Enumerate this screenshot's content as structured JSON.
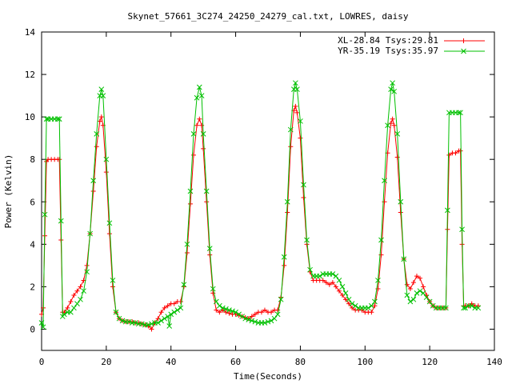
{
  "chart_data": {
    "type": "line",
    "title": "Skynet_57661_3C274_24250_24279_cal.txt, LOWRES, daisy",
    "xlabel": "Time(Seconds)",
    "ylabel": "Power (Kelvin)",
    "xlim": [
      0,
      140
    ],
    "ylim": [
      -1,
      14
    ],
    "xticks": [
      0,
      20,
      40,
      60,
      80,
      100,
      120,
      140
    ],
    "yticks": [
      0,
      2,
      4,
      6,
      8,
      10,
      12,
      14
    ],
    "grid": false,
    "legend_position": "top-right",
    "series": [
      {
        "name": "XL-28.84 Tsys:29.81",
        "color": "#ff0000",
        "marker": "plus",
        "points": [
          [
            0,
            0.7
          ],
          [
            0.5,
            1.0
          ],
          [
            1,
            4.4
          ],
          [
            1.5,
            7.9
          ],
          [
            2,
            8.0
          ],
          [
            3,
            8.0
          ],
          [
            4,
            8.0
          ],
          [
            5,
            8.0
          ],
          [
            5.5,
            8.0
          ],
          [
            6,
            4.2
          ],
          [
            6.5,
            0.8
          ],
          [
            7,
            0.8
          ],
          [
            8,
            1.0
          ],
          [
            9,
            1.3
          ],
          [
            10,
            1.6
          ],
          [
            11,
            1.8
          ],
          [
            12,
            2.0
          ],
          [
            13,
            2.3
          ],
          [
            14,
            3.0
          ],
          [
            15,
            4.5
          ],
          [
            16,
            6.5
          ],
          [
            17,
            8.6
          ],
          [
            18,
            9.8
          ],
          [
            18.5,
            10.0
          ],
          [
            19,
            9.6
          ],
          [
            20,
            7.4
          ],
          [
            21,
            4.5
          ],
          [
            22,
            2.0
          ],
          [
            23,
            0.8
          ],
          [
            24,
            0.5
          ],
          [
            25,
            0.4
          ],
          [
            26,
            0.35
          ],
          [
            27,
            0.35
          ],
          [
            28,
            0.35
          ],
          [
            29,
            0.3
          ],
          [
            30,
            0.3
          ],
          [
            31,
            0.25
          ],
          [
            32,
            0.2
          ],
          [
            33,
            0.15
          ],
          [
            34,
            0.0
          ],
          [
            35,
            0.3
          ],
          [
            36,
            0.5
          ],
          [
            37,
            0.8
          ],
          [
            38,
            1.0
          ],
          [
            39,
            1.1
          ],
          [
            40,
            1.2
          ],
          [
            41,
            1.2
          ],
          [
            42,
            1.3
          ],
          [
            43,
            1.3
          ],
          [
            44,
            2.0
          ],
          [
            45,
            3.6
          ],
          [
            46,
            5.9
          ],
          [
            47,
            8.2
          ],
          [
            48,
            9.6
          ],
          [
            48.8,
            9.9
          ],
          [
            49.5,
            9.6
          ],
          [
            50,
            8.5
          ],
          [
            51,
            6.0
          ],
          [
            52,
            3.5
          ],
          [
            53,
            1.7
          ],
          [
            54,
            0.9
          ],
          [
            55,
            0.8
          ],
          [
            56,
            0.9
          ],
          [
            57,
            0.8
          ],
          [
            58,
            0.75
          ],
          [
            59,
            0.7
          ],
          [
            60,
            0.7
          ],
          [
            61,
            0.65
          ],
          [
            62,
            0.6
          ],
          [
            63,
            0.55
          ],
          [
            64,
            0.5
          ],
          [
            65,
            0.6
          ],
          [
            66,
            0.7
          ],
          [
            67,
            0.8
          ],
          [
            68,
            0.8
          ],
          [
            69,
            0.9
          ],
          [
            70,
            0.8
          ],
          [
            71,
            0.8
          ],
          [
            72,
            0.9
          ],
          [
            73,
            0.9
          ],
          [
            74,
            1.5
          ],
          [
            75,
            3.0
          ],
          [
            76,
            5.5
          ],
          [
            77,
            8.6
          ],
          [
            78,
            10.3
          ],
          [
            78.5,
            10.5
          ],
          [
            79,
            10.2
          ],
          [
            80,
            9.0
          ],
          [
            81,
            6.2
          ],
          [
            82,
            4.0
          ],
          [
            83,
            2.7
          ],
          [
            84,
            2.3
          ],
          [
            85,
            2.3
          ],
          [
            86,
            2.3
          ],
          [
            87,
            2.3
          ],
          [
            88,
            2.2
          ],
          [
            89,
            2.1
          ],
          [
            90,
            2.2
          ],
          [
            91,
            2.0
          ],
          [
            92,
            1.8
          ],
          [
            93,
            1.6
          ],
          [
            94,
            1.4
          ],
          [
            95,
            1.2
          ],
          [
            96,
            1.0
          ],
          [
            97,
            0.9
          ],
          [
            98,
            0.9
          ],
          [
            99,
            0.9
          ],
          [
            100,
            0.8
          ],
          [
            101,
            0.8
          ],
          [
            102,
            0.8
          ],
          [
            103,
            1.1
          ],
          [
            104,
            1.9
          ],
          [
            105,
            3.5
          ],
          [
            106,
            6.0
          ],
          [
            107,
            8.3
          ],
          [
            108,
            9.7
          ],
          [
            108.5,
            9.9
          ],
          [
            109,
            9.6
          ],
          [
            110,
            8.1
          ],
          [
            111,
            5.5
          ],
          [
            112,
            3.3
          ],
          [
            113,
            2.1
          ],
          [
            114,
            1.9
          ],
          [
            115,
            2.2
          ],
          [
            116,
            2.5
          ],
          [
            117,
            2.4
          ],
          [
            118,
            2.0
          ],
          [
            119,
            1.6
          ],
          [
            120,
            1.3
          ],
          [
            121,
            1.1
          ],
          [
            122,
            1.0
          ],
          [
            123,
            1.0
          ],
          [
            124,
            1.0
          ],
          [
            125,
            1.0
          ],
          [
            125.5,
            4.7
          ],
          [
            126,
            8.2
          ],
          [
            127,
            8.3
          ],
          [
            128,
            8.3
          ],
          [
            129,
            8.4
          ],
          [
            129.5,
            8.4
          ],
          [
            130,
            4.0
          ],
          [
            130.5,
            1.1
          ],
          [
            131,
            1.1
          ],
          [
            132,
            1.1
          ],
          [
            133,
            1.2
          ],
          [
            134,
            1.1
          ],
          [
            135,
            1.1
          ]
        ]
      },
      {
        "name": "YR-35.19 Tsys:35.97",
        "color": "#00c000",
        "marker": "cross",
        "points": [
          [
            0,
            0.3
          ],
          [
            0.5,
            0.1
          ],
          [
            1,
            5.4
          ],
          [
            1.5,
            9.9
          ],
          [
            2,
            9.9
          ],
          [
            3,
            9.9
          ],
          [
            4,
            9.9
          ],
          [
            5,
            9.9
          ],
          [
            5.5,
            9.9
          ],
          [
            6,
            5.1
          ],
          [
            6.5,
            0.6
          ],
          [
            7,
            0.7
          ],
          [
            8,
            0.8
          ],
          [
            9,
            0.8
          ],
          [
            10,
            1.0
          ],
          [
            11,
            1.2
          ],
          [
            12,
            1.4
          ],
          [
            13,
            1.8
          ],
          [
            14,
            2.7
          ],
          [
            15,
            4.5
          ],
          [
            16,
            7.0
          ],
          [
            17,
            9.2
          ],
          [
            18,
            11.0
          ],
          [
            18.5,
            11.3
          ],
          [
            19,
            11.0
          ],
          [
            20,
            8.0
          ],
          [
            21,
            5.0
          ],
          [
            22,
            2.3
          ],
          [
            23,
            0.8
          ],
          [
            24,
            0.5
          ],
          [
            25,
            0.4
          ],
          [
            26,
            0.35
          ],
          [
            27,
            0.35
          ],
          [
            28,
            0.3
          ],
          [
            29,
            0.3
          ],
          [
            30,
            0.25
          ],
          [
            31,
            0.25
          ],
          [
            32,
            0.2
          ],
          [
            33,
            0.2
          ],
          [
            34,
            0.25
          ],
          [
            35,
            0.3
          ],
          [
            36,
            0.3
          ],
          [
            37,
            0.4
          ],
          [
            38,
            0.5
          ],
          [
            39,
            0.6
          ],
          [
            39.5,
            0.15
          ],
          [
            40,
            0.7
          ],
          [
            41,
            0.8
          ],
          [
            42,
            0.9
          ],
          [
            43,
            1.0
          ],
          [
            44,
            2.1
          ],
          [
            45,
            4.0
          ],
          [
            46,
            6.5
          ],
          [
            47,
            9.2
          ],
          [
            48,
            10.9
          ],
          [
            48.8,
            11.4
          ],
          [
            49.5,
            11.0
          ],
          [
            50,
            9.2
          ],
          [
            51,
            6.5
          ],
          [
            52,
            3.8
          ],
          [
            53,
            1.9
          ],
          [
            54,
            1.3
          ],
          [
            55,
            1.1
          ],
          [
            56,
            1.0
          ],
          [
            57,
            0.95
          ],
          [
            58,
            0.9
          ],
          [
            59,
            0.85
          ],
          [
            60,
            0.8
          ],
          [
            61,
            0.7
          ],
          [
            62,
            0.6
          ],
          [
            63,
            0.5
          ],
          [
            64,
            0.45
          ],
          [
            65,
            0.4
          ],
          [
            66,
            0.35
          ],
          [
            67,
            0.3
          ],
          [
            68,
            0.3
          ],
          [
            69,
            0.3
          ],
          [
            70,
            0.35
          ],
          [
            71,
            0.4
          ],
          [
            72,
            0.5
          ],
          [
            73,
            0.7
          ],
          [
            74,
            1.4
          ],
          [
            75,
            3.4
          ],
          [
            76,
            6.0
          ],
          [
            77,
            9.4
          ],
          [
            78,
            11.3
          ],
          [
            78.5,
            11.6
          ],
          [
            79,
            11.3
          ],
          [
            80,
            9.8
          ],
          [
            81,
            6.8
          ],
          [
            82,
            4.2
          ],
          [
            83,
            2.8
          ],
          [
            84,
            2.5
          ],
          [
            85,
            2.5
          ],
          [
            86,
            2.5
          ],
          [
            87,
            2.6
          ],
          [
            88,
            2.6
          ],
          [
            89,
            2.6
          ],
          [
            90,
            2.6
          ],
          [
            91,
            2.5
          ],
          [
            92,
            2.3
          ],
          [
            93,
            2.0
          ],
          [
            94,
            1.7
          ],
          [
            95,
            1.4
          ],
          [
            96,
            1.2
          ],
          [
            97,
            1.1
          ],
          [
            98,
            1.0
          ],
          [
            99,
            1.0
          ],
          [
            100,
            1.0
          ],
          [
            101,
            1.0
          ],
          [
            102,
            1.1
          ],
          [
            103,
            1.3
          ],
          [
            104,
            2.3
          ],
          [
            105,
            4.2
          ],
          [
            106,
            7.0
          ],
          [
            107,
            9.6
          ],
          [
            108,
            11.3
          ],
          [
            108.5,
            11.6
          ],
          [
            109,
            11.2
          ],
          [
            110,
            9.2
          ],
          [
            111,
            6.0
          ],
          [
            112,
            3.3
          ],
          [
            113,
            1.6
          ],
          [
            114,
            1.3
          ],
          [
            115,
            1.4
          ],
          [
            116,
            1.7
          ],
          [
            117,
            1.8
          ],
          [
            118,
            1.7
          ],
          [
            119,
            1.5
          ],
          [
            120,
            1.3
          ],
          [
            121,
            1.1
          ],
          [
            122,
            1.0
          ],
          [
            123,
            1.0
          ],
          [
            124,
            1.0
          ],
          [
            125,
            1.0
          ],
          [
            125.5,
            5.6
          ],
          [
            126,
            10.2
          ],
          [
            127,
            10.2
          ],
          [
            128,
            10.2
          ],
          [
            129,
            10.2
          ],
          [
            129.5,
            10.2
          ],
          [
            130,
            4.7
          ],
          [
            130.5,
            1.0
          ],
          [
            131,
            1.0
          ],
          [
            132,
            1.1
          ],
          [
            133,
            1.1
          ],
          [
            134,
            1.0
          ],
          [
            135,
            1.0
          ]
        ]
      }
    ]
  }
}
